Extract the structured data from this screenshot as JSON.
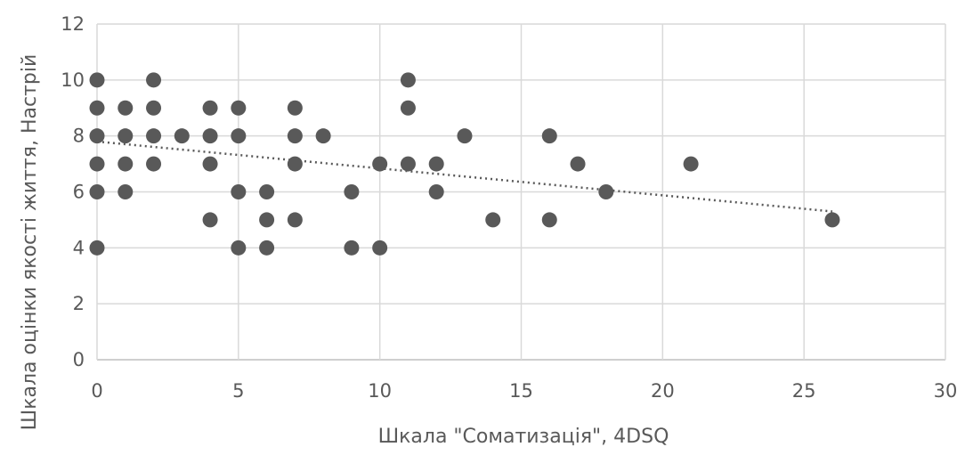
{
  "chart_data": {
    "type": "scatter",
    "xlabel": "Шкала \"Соматизація\", 4DSQ",
    "ylabel": "Шкала оцінки якості життя, Настрій",
    "xlim": [
      0,
      30
    ],
    "ylim": [
      0,
      12
    ],
    "x_ticks": [
      0,
      5,
      10,
      15,
      20,
      25,
      30
    ],
    "y_ticks": [
      0,
      2,
      4,
      6,
      8,
      10,
      12
    ],
    "grid": true,
    "points": [
      {
        "x": 0,
        "y": 10
      },
      {
        "x": 0,
        "y": 9
      },
      {
        "x": 0,
        "y": 8
      },
      {
        "x": 0,
        "y": 7
      },
      {
        "x": 0,
        "y": 6
      },
      {
        "x": 0,
        "y": 4
      },
      {
        "x": 1,
        "y": 9
      },
      {
        "x": 1,
        "y": 8
      },
      {
        "x": 1,
        "y": 7
      },
      {
        "x": 1,
        "y": 6
      },
      {
        "x": 2,
        "y": 10
      },
      {
        "x": 2,
        "y": 9
      },
      {
        "x": 2,
        "y": 8
      },
      {
        "x": 2,
        "y": 7
      },
      {
        "x": 3,
        "y": 8
      },
      {
        "x": 4,
        "y": 9
      },
      {
        "x": 4,
        "y": 8
      },
      {
        "x": 4,
        "y": 7
      },
      {
        "x": 4,
        "y": 5
      },
      {
        "x": 5,
        "y": 9
      },
      {
        "x": 5,
        "y": 8
      },
      {
        "x": 5,
        "y": 6
      },
      {
        "x": 5,
        "y": 4
      },
      {
        "x": 6,
        "y": 6
      },
      {
        "x": 6,
        "y": 5
      },
      {
        "x": 6,
        "y": 4
      },
      {
        "x": 7,
        "y": 9
      },
      {
        "x": 7,
        "y": 8
      },
      {
        "x": 7,
        "y": 7
      },
      {
        "x": 7,
        "y": 5
      },
      {
        "x": 8,
        "y": 8
      },
      {
        "x": 9,
        "y": 6
      },
      {
        "x": 9,
        "y": 4
      },
      {
        "x": 10,
        "y": 7
      },
      {
        "x": 10,
        "y": 4
      },
      {
        "x": 11,
        "y": 10
      },
      {
        "x": 11,
        "y": 9
      },
      {
        "x": 11,
        "y": 7
      },
      {
        "x": 12,
        "y": 7
      },
      {
        "x": 12,
        "y": 6
      },
      {
        "x": 13,
        "y": 8
      },
      {
        "x": 14,
        "y": 5
      },
      {
        "x": 16,
        "y": 8
      },
      {
        "x": 16,
        "y": 5
      },
      {
        "x": 17,
        "y": 7
      },
      {
        "x": 18,
        "y": 6
      },
      {
        "x": 21,
        "y": 7
      },
      {
        "x": 26,
        "y": 5
      }
    ],
    "trendline": {
      "style": "dotted",
      "from": {
        "x": 0,
        "y": 7.8
      },
      "to": {
        "x": 26,
        "y": 5.3
      }
    },
    "colors": {
      "marker": "#595959",
      "grid": "#d9d9d9",
      "axis": "#bfbfbf",
      "text": "#595959",
      "trend": "#595959"
    }
  }
}
